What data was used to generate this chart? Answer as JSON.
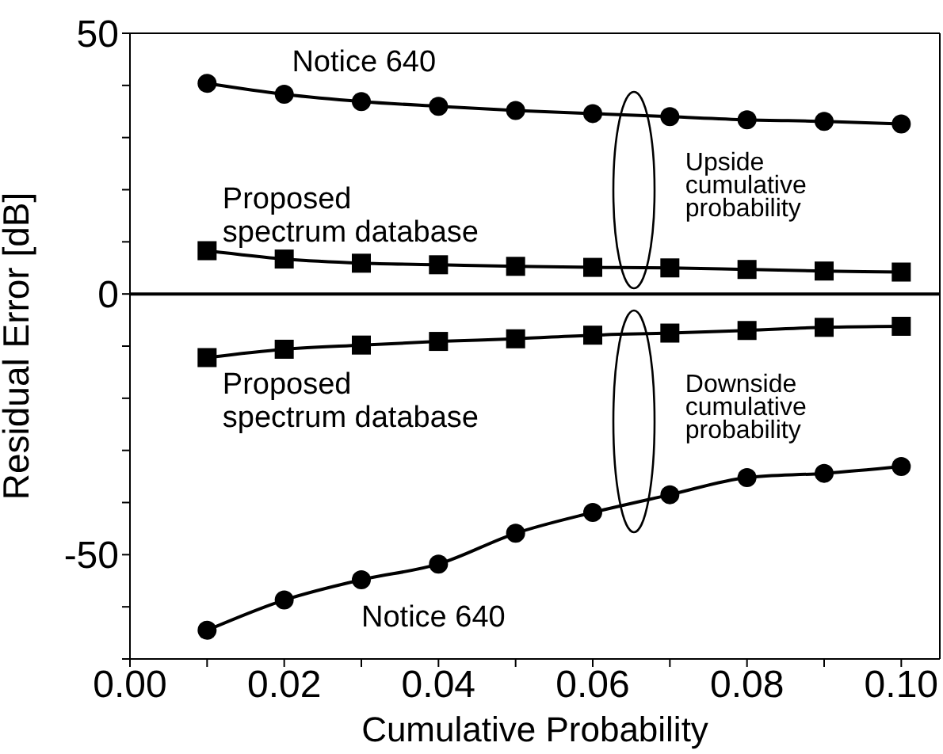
{
  "chart_data": {
    "type": "line",
    "xlabel": "Cumulative Probability",
    "ylabel": "Residual Error [dB]",
    "x": [
      0.01,
      0.02,
      0.03,
      0.04,
      0.05,
      0.06,
      0.07,
      0.08,
      0.09,
      0.1
    ],
    "series": [
      {
        "name": "Notice 640",
        "color": "#000000",
        "marker": "circle",
        "values": [
          40.4,
          38.3,
          36.9,
          36.0,
          35.2,
          34.6,
          34.0,
          33.4,
          33.1,
          32.6
        ]
      },
      {
        "name": "Proposed spectrum database",
        "color": "#000000",
        "marker": "square",
        "values": [
          8.3,
          6.7,
          5.9,
          5.6,
          5.3,
          5.1,
          5.0,
          4.7,
          4.4,
          4.2
        ]
      },
      {
        "name": "Proposed spectrum database",
        "color": "#000000",
        "marker": "square",
        "values": [
          -12.2,
          -10.6,
          -9.8,
          -9.1,
          -8.6,
          -7.9,
          -7.5,
          -7.0,
          -6.4,
          -6.2
        ]
      },
      {
        "name": "Notice 640",
        "color": "#000000",
        "marker": "circle",
        "values": [
          -64.5,
          -58.7,
          -54.8,
          -51.8,
          -45.9,
          -41.9,
          -38.5,
          -35.2,
          -34.4,
          -33.1
        ]
      }
    ],
    "xlim": [
      0,
      0.105
    ],
    "xticks": [
      {
        "value": 0,
        "label": "0.00"
      },
      {
        "value": 0.01,
        "label": null
      },
      {
        "value": 0.02,
        "label": "0.02"
      },
      {
        "value": 0.03,
        "label": null
      },
      {
        "value": 0.04,
        "label": "0.04"
      },
      {
        "value": 0.05,
        "label": null
      },
      {
        "value": 0.06,
        "label": "0.06"
      },
      {
        "value": 0.07,
        "label": null
      },
      {
        "value": 0.08,
        "label": "0.08"
      },
      {
        "value": 0.09,
        "label": null
      },
      {
        "value": 0.1,
        "label": "0.10"
      }
    ],
    "ylim": [
      -70,
      50
    ],
    "yticks": [
      {
        "value": -70,
        "label": null
      },
      {
        "value": -60,
        "label": null
      },
      -50,
      {
        "value": -40,
        "label": null
      },
      {
        "value": -30,
        "label": null
      },
      {
        "value": -20,
        "label": null
      },
      {
        "value": -10,
        "label": null
      },
      0,
      {
        "value": 10,
        "label": null
      },
      {
        "value": 20,
        "label": null
      },
      {
        "value": 30,
        "label": null
      },
      {
        "value": 40,
        "label": null
      },
      50
    ],
    "ref_lines": [
      {
        "axis": "y",
        "value": 0,
        "color": "#000000"
      }
    ],
    "grid": false,
    "legend": false,
    "line_style": "solid",
    "annotations": [
      "Upside cumulative probability",
      "Downside cumulative probability"
    ]
  }
}
